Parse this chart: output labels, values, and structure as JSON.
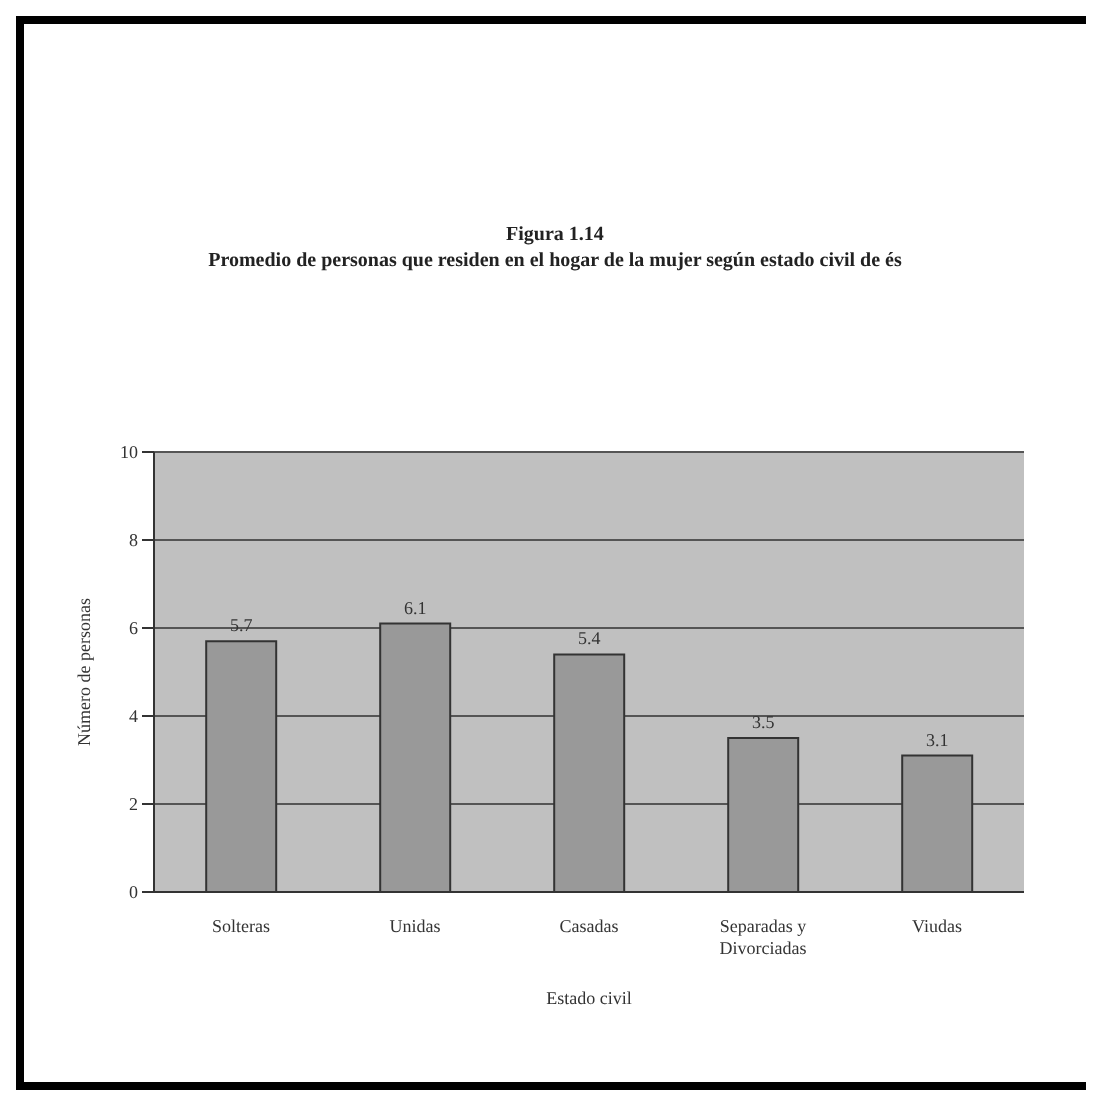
{
  "chart_data": {
    "type": "bar",
    "title": "Figura 1.14",
    "subtitle": "Promedio de personas que residen en el hogar de la mujer según estado civil de és",
    "xlabel": "Estado civil",
    "ylabel": "Número de personas",
    "categories": [
      "Solteras",
      "Unidas",
      "Casadas",
      "Separadas y Divorciadas",
      "Viudas"
    ],
    "values": [
      5.7,
      6.1,
      5.4,
      3.5,
      3.1
    ],
    "color": "#999999",
    "ylim": [
      0,
      10
    ],
    "yticks": [
      0,
      2,
      4,
      6,
      8,
      10
    ],
    "grid": "y",
    "data_labels": true
  }
}
